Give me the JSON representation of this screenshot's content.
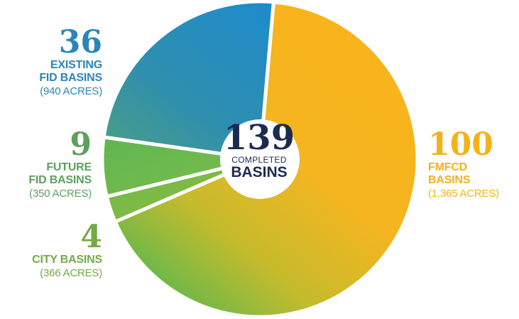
{
  "colors": {
    "existing": "#2a8cc1",
    "future": "#6bba4f",
    "city": "#7cba46",
    "fmfcd": "#f7b71d",
    "center": "#1d2a4f",
    "existing_text": "#2a86b8",
    "future_text": "#5f9e5c",
    "city_text": "#72ab45",
    "fmfcd_text": "#f4b21a"
  },
  "center": {
    "total": "139",
    "line1": "COMPLETED",
    "line2": "BASINS"
  },
  "labels": {
    "existing": {
      "num": "36",
      "line1": "EXISTING",
      "line2": "FID BASINS",
      "acres": "(940 ACRES)"
    },
    "future": {
      "num": "9",
      "line1": "FUTURE",
      "line2": "FID BASINS",
      "acres": "(350 ACRES)"
    },
    "city": {
      "num": "4",
      "line1": "CITY BASINS",
      "acres": "(366 ACRES)"
    },
    "fmfcd": {
      "num": "100",
      "line1": "FMFCD",
      "line2": "BASINS",
      "acres": "(1,365 ACRES)"
    }
  },
  "chart_data": {
    "type": "pie",
    "categories": [
      "FMFCD Basins",
      "Existing FID Basins",
      "Future FID Basins",
      "City Basins"
    ],
    "values": [
      100,
      36,
      9,
      4
    ],
    "acres": [
      1365,
      940,
      350,
      366
    ],
    "hole_label": "139 COMPLETED BASINS"
  }
}
